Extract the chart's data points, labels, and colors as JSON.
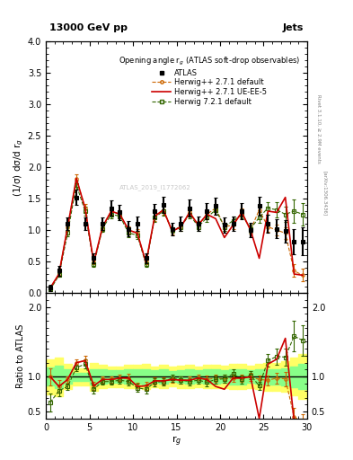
{
  "title_top": "13000 GeV pp",
  "title_right": "Jets",
  "plot_title": "Opening angle r$_g$ (ATLAS soft-drop observables)",
  "ylabel_main": "(1/σ) dσ/d r$_g$",
  "ylabel_ratio": "Ratio to ATLAS",
  "xlabel": "r$_g$",
  "rivet_label": "Rivet 3.1.10, ≥ 2.9M events",
  "arxiv_label": "[arXiv:1306.3436]",
  "watermark": "ATLAS_2019_I1772062",
  "ylim_main": [
    0,
    4
  ],
  "ylim_ratio": [
    0.4,
    2.2
  ],
  "xlim": [
    0,
    30
  ],
  "atlas_x": [
    0.5,
    1.5,
    2.5,
    3.5,
    4.5,
    5.5,
    6.5,
    7.5,
    8.5,
    9.5,
    10.5,
    11.5,
    12.5,
    13.5,
    14.5,
    15.5,
    16.5,
    17.5,
    18.5,
    19.5,
    20.5,
    21.5,
    22.5,
    23.5,
    24.5,
    25.5,
    26.5,
    27.5,
    28.5,
    29.5
  ],
  "atlas_y": [
    0.08,
    0.35,
    1.1,
    1.52,
    1.1,
    0.55,
    1.1,
    1.35,
    1.28,
    1.02,
    1.1,
    0.55,
    1.3,
    1.4,
    1.02,
    1.1,
    1.35,
    1.1,
    1.3,
    1.38,
    1.08,
    1.1,
    1.3,
    1.0,
    1.38,
    1.1,
    1.02,
    0.98,
    0.82,
    0.82
  ],
  "atlas_yerr": [
    0.05,
    0.08,
    0.1,
    0.12,
    0.1,
    0.08,
    0.1,
    0.12,
    0.12,
    0.12,
    0.12,
    0.08,
    0.12,
    0.13,
    0.1,
    0.12,
    0.13,
    0.12,
    0.13,
    0.14,
    0.12,
    0.12,
    0.13,
    0.12,
    0.15,
    0.15,
    0.15,
    0.18,
    0.2,
    0.22
  ],
  "hw271_x": [
    0.5,
    1.5,
    2.5,
    3.5,
    4.5,
    5.5,
    6.5,
    7.5,
    8.5,
    9.5,
    10.5,
    11.5,
    12.5,
    13.5,
    14.5,
    15.5,
    16.5,
    17.5,
    18.5,
    19.5,
    20.5,
    21.5,
    22.5,
    23.5,
    24.5,
    25.5,
    26.5,
    27.5,
    28.5,
    29.5
  ],
  "hw271_y": [
    0.08,
    0.3,
    1.05,
    1.82,
    1.35,
    0.48,
    1.05,
    1.3,
    1.25,
    1.0,
    0.95,
    0.48,
    1.22,
    1.32,
    0.98,
    1.05,
    1.28,
    1.08,
    1.25,
    1.35,
    1.05,
    1.08,
    1.28,
    1.0,
    1.32,
    1.05,
    1.0,
    0.95,
    0.35,
    0.28
  ],
  "hw271_yerr": [
    0.01,
    0.03,
    0.05,
    0.07,
    0.07,
    0.03,
    0.05,
    0.06,
    0.06,
    0.06,
    0.06,
    0.03,
    0.07,
    0.07,
    0.05,
    0.06,
    0.07,
    0.06,
    0.07,
    0.07,
    0.06,
    0.06,
    0.07,
    0.06,
    0.08,
    0.08,
    0.08,
    0.1,
    0.1,
    0.1
  ],
  "hw271ue_x": [
    0.5,
    1.5,
    2.5,
    3.5,
    4.5,
    5.5,
    6.5,
    7.5,
    8.5,
    9.5,
    10.5,
    11.5,
    12.5,
    13.5,
    14.5,
    15.5,
    16.5,
    17.5,
    18.5,
    19.5,
    20.5,
    21.5,
    22.5,
    23.5,
    24.5,
    25.5,
    26.5,
    27.5,
    28.5,
    29.5
  ],
  "hw271ue_y": [
    0.08,
    0.3,
    1.05,
    1.82,
    1.35,
    0.48,
    1.05,
    1.3,
    1.25,
    1.0,
    0.95,
    0.48,
    1.22,
    1.32,
    0.98,
    1.05,
    1.28,
    1.08,
    1.25,
    1.18,
    0.88,
    1.08,
    1.28,
    1.0,
    0.55,
    1.3,
    1.28,
    1.52,
    0.3,
    0.28
  ],
  "hw721_x": [
    0.5,
    1.5,
    2.5,
    3.5,
    4.5,
    5.5,
    6.5,
    7.5,
    8.5,
    9.5,
    10.5,
    11.5,
    12.5,
    13.5,
    14.5,
    15.5,
    16.5,
    17.5,
    18.5,
    19.5,
    20.5,
    21.5,
    22.5,
    23.5,
    24.5,
    25.5,
    26.5,
    27.5,
    28.5,
    29.5
  ],
  "hw721_y": [
    0.05,
    0.28,
    0.95,
    1.72,
    1.3,
    0.45,
    1.02,
    1.25,
    1.22,
    0.95,
    0.92,
    0.45,
    1.2,
    1.3,
    1.0,
    1.05,
    1.25,
    1.05,
    1.2,
    1.32,
    1.05,
    1.15,
    1.25,
    1.02,
    1.2,
    1.35,
    1.32,
    1.25,
    1.3,
    1.25
  ],
  "hw721_yerr": [
    0.01,
    0.03,
    0.05,
    0.07,
    0.07,
    0.03,
    0.05,
    0.06,
    0.06,
    0.06,
    0.06,
    0.03,
    0.07,
    0.07,
    0.05,
    0.06,
    0.07,
    0.06,
    0.07,
    0.08,
    0.06,
    0.07,
    0.07,
    0.06,
    0.08,
    0.1,
    0.12,
    0.12,
    0.18,
    0.18
  ],
  "color_atlas": "#000000",
  "color_hw271": "#cc6600",
  "color_hw271ue": "#cc0000",
  "color_hw721": "#336600",
  "band_yellow": "#ffff66",
  "band_green": "#88ff88",
  "ratio_hw271_y": [
    1.0,
    0.86,
    0.96,
    1.2,
    1.23,
    0.87,
    0.96,
    0.96,
    0.98,
    0.98,
    0.86,
    0.87,
    0.94,
    0.94,
    0.96,
    0.95,
    0.95,
    0.98,
    0.96,
    0.98,
    0.97,
    0.98,
    0.98,
    1.0,
    0.96,
    0.95,
    0.98,
    0.97,
    0.43,
    0.34
  ],
  "ratio_hw271ue_y": [
    1.0,
    0.86,
    0.96,
    1.2,
    1.23,
    0.87,
    0.96,
    0.96,
    0.98,
    0.98,
    0.86,
    0.87,
    0.94,
    0.94,
    0.96,
    0.95,
    0.95,
    0.98,
    0.96,
    0.86,
    0.82,
    0.98,
    0.98,
    1.0,
    0.4,
    1.18,
    1.25,
    1.55,
    0.37,
    0.34
  ],
  "ratio_hw721_y": [
    0.63,
    0.8,
    0.86,
    1.13,
    1.18,
    0.82,
    0.93,
    0.93,
    0.95,
    0.93,
    0.84,
    0.82,
    0.92,
    0.93,
    0.98,
    0.95,
    0.93,
    0.95,
    0.92,
    0.96,
    0.97,
    1.04,
    0.96,
    1.02,
    0.87,
    1.23,
    1.29,
    1.28,
    1.58,
    1.52
  ],
  "band_yellow_lo": [
    0.75,
    0.72,
    0.82,
    0.88,
    0.88,
    0.8,
    0.83,
    0.85,
    0.85,
    0.83,
    0.83,
    0.82,
    0.85,
    0.83,
    0.86,
    0.84,
    0.83,
    0.85,
    0.83,
    0.83,
    0.84,
    0.82,
    0.82,
    0.84,
    0.82,
    0.8,
    0.8,
    0.78,
    0.73,
    0.68
  ],
  "band_yellow_hi": [
    1.25,
    1.28,
    1.18,
    1.12,
    1.12,
    1.2,
    1.17,
    1.15,
    1.15,
    1.17,
    1.17,
    1.18,
    1.15,
    1.17,
    1.14,
    1.16,
    1.17,
    1.15,
    1.17,
    1.17,
    1.16,
    1.18,
    1.18,
    1.16,
    1.18,
    1.2,
    1.2,
    1.22,
    1.27,
    1.32
  ],
  "band_green_lo": [
    0.87,
    0.84,
    0.9,
    0.94,
    0.94,
    0.89,
    0.9,
    0.91,
    0.91,
    0.9,
    0.9,
    0.89,
    0.91,
    0.9,
    0.92,
    0.91,
    0.9,
    0.91,
    0.9,
    0.9,
    0.91,
    0.89,
    0.89,
    0.91,
    0.9,
    0.89,
    0.89,
    0.88,
    0.85,
    0.82
  ],
  "band_green_hi": [
    1.13,
    1.16,
    1.1,
    1.06,
    1.06,
    1.11,
    1.1,
    1.09,
    1.09,
    1.1,
    1.1,
    1.11,
    1.09,
    1.1,
    1.08,
    1.09,
    1.1,
    1.09,
    1.1,
    1.1,
    1.09,
    1.11,
    1.11,
    1.09,
    1.1,
    1.11,
    1.11,
    1.12,
    1.15,
    1.18
  ]
}
